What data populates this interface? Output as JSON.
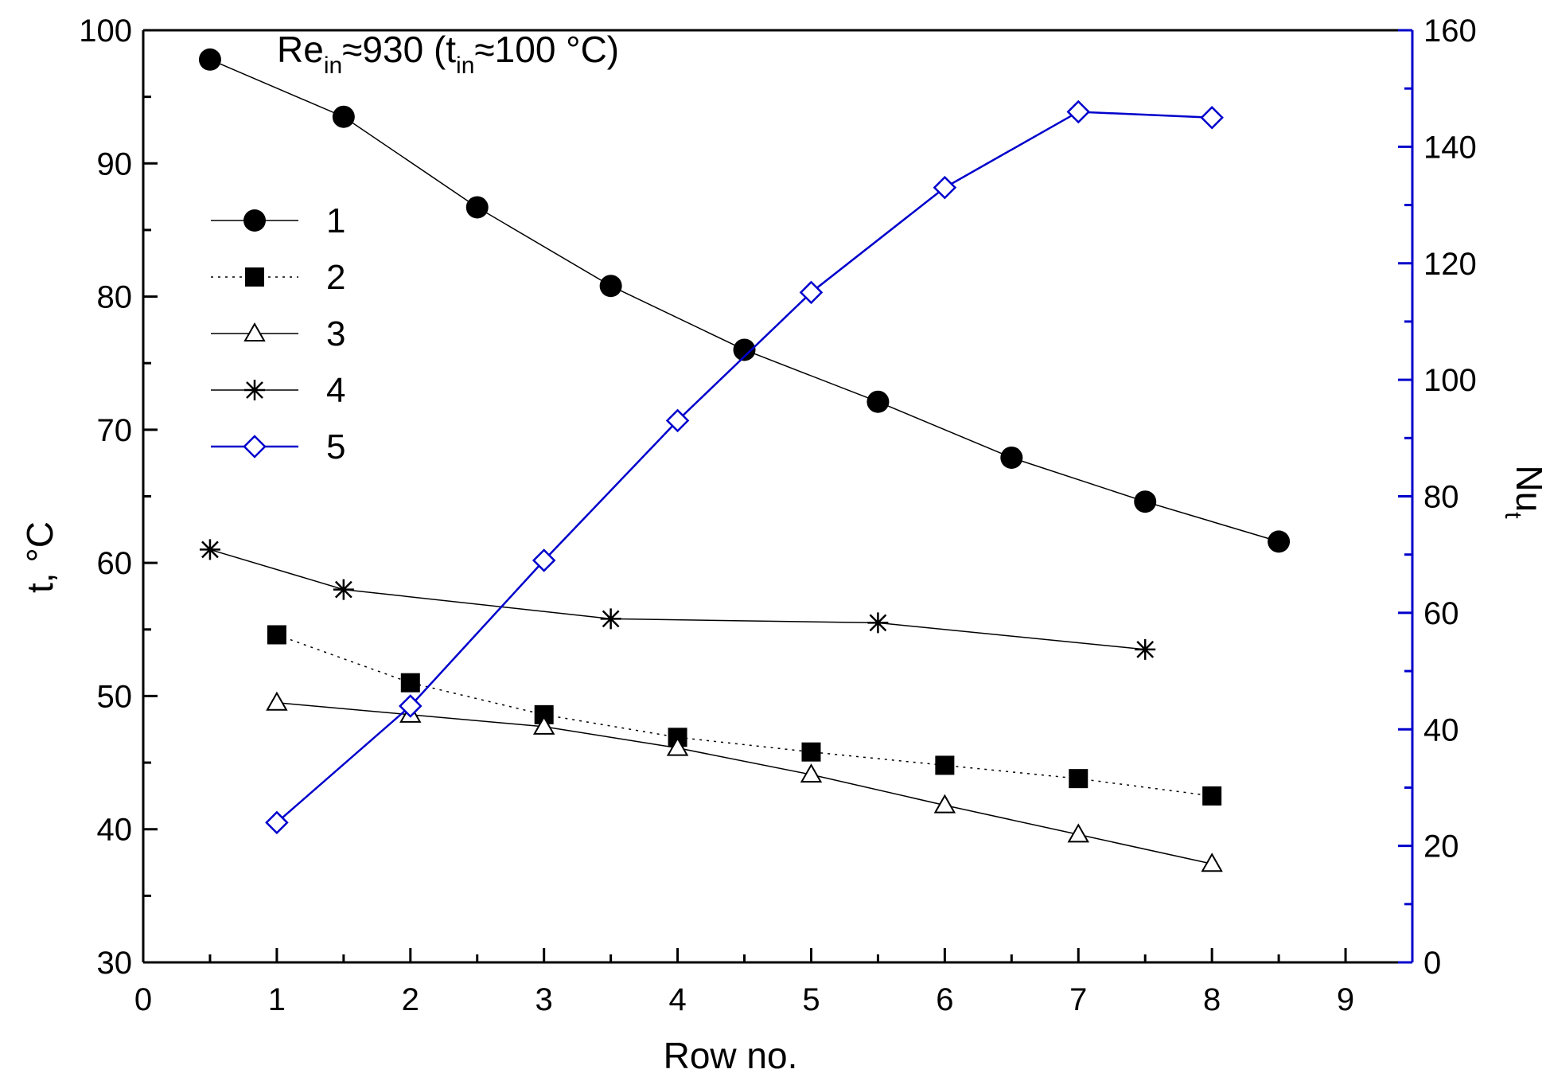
{
  "chart_data": {
    "type": "line",
    "title_parts": {
      "re": "Re",
      "re_sub": "in",
      "approx_value": "≈930 (t",
      "t_sub": "in",
      "tail": "≈100 °C)"
    },
    "xlabel": "Row no.",
    "ylabel": "t, °C",
    "y2label_main": "Nu",
    "y2label_sub": "t",
    "xlim": [
      0,
      9.5
    ],
    "ylim": [
      30,
      100
    ],
    "y2lim": [
      0,
      160
    ],
    "x_ticks": [
      "0",
      "1",
      "2",
      "3",
      "4",
      "5",
      "6",
      "7",
      "8",
      "9"
    ],
    "y_ticks": [
      "30",
      "40",
      "50",
      "60",
      "70",
      "80",
      "90",
      "100"
    ],
    "y2_ticks": [
      "0",
      "20",
      "40",
      "60",
      "80",
      "100",
      "120",
      "140",
      "160"
    ],
    "legend_position": "upper-left",
    "colors": {
      "black": "#000000",
      "blue": "#0000cc"
    },
    "series": [
      {
        "name": "1",
        "axis": "left",
        "marker": "filled-circle",
        "line": "solid",
        "color": "#000000",
        "x": [
          0.5,
          1.5,
          2.5,
          3.5,
          4.5,
          5.5,
          6.5,
          7.5,
          8.5
        ],
        "y": [
          97.8,
          93.5,
          86.7,
          80.8,
          76.0,
          72.1,
          67.9,
          64.6,
          61.6
        ]
      },
      {
        "name": "2",
        "axis": "left",
        "marker": "filled-square",
        "line": "dotted",
        "color": "#000000",
        "x": [
          1,
          2,
          3,
          4,
          5,
          6,
          7,
          8
        ],
        "y": [
          54.6,
          51.0,
          48.6,
          46.9,
          45.8,
          44.8,
          43.8,
          42.5
        ]
      },
      {
        "name": "3",
        "axis": "left",
        "marker": "open-triangle",
        "line": "solid",
        "color": "#000000",
        "x": [
          1,
          2,
          3,
          4,
          5,
          6,
          7,
          8
        ],
        "y": [
          49.5,
          48.6,
          47.7,
          46.1,
          44.1,
          41.8,
          39.6,
          37.4
        ]
      },
      {
        "name": "4",
        "axis": "left",
        "marker": "asterisk",
        "line": "solid",
        "color": "#000000",
        "x": [
          0.5,
          1.5,
          3.5,
          5.5,
          7.5
        ],
        "y": [
          61.0,
          58.0,
          55.8,
          55.5,
          53.5
        ]
      },
      {
        "name": "5",
        "axis": "right",
        "marker": "open-diamond",
        "line": "solid",
        "color": "#0000cc",
        "x": [
          1,
          2,
          3,
          4,
          5,
          6,
          7,
          8
        ],
        "y": [
          24,
          44,
          69,
          93,
          115,
          133,
          146,
          145
        ]
      }
    ]
  }
}
